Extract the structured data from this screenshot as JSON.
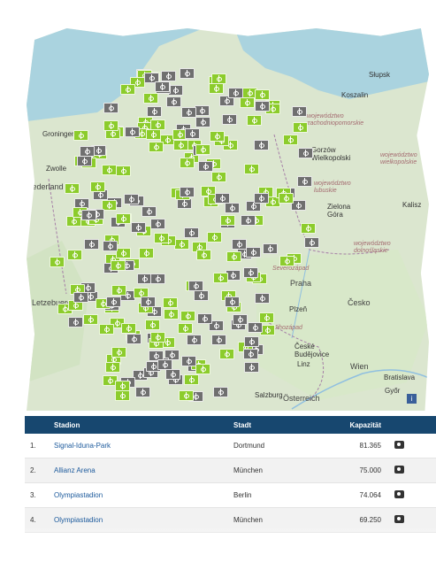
{
  "map": {
    "labels": [
      {
        "text": "Słupsk",
        "cls": "city"
      },
      {
        "text": "Koszalin",
        "cls": "city"
      },
      {
        "text": "Groningen",
        "cls": "city"
      },
      {
        "text": "Zwolle",
        "cls": "city"
      },
      {
        "text": "Gorzów Wielkopolski",
        "cls": "city"
      },
      {
        "text": "województwo zachodniopomorskie",
        "cls": "region"
      },
      {
        "text": "województwo lubuskie",
        "cls": "region"
      },
      {
        "text": "województwo wielkopolskie",
        "cls": "region"
      },
      {
        "text": "województwo dolnośląskie",
        "cls": "region"
      },
      {
        "text": "Zielona Góra",
        "cls": "city"
      },
      {
        "text": "Praha",
        "cls": "big"
      },
      {
        "text": "Česko",
        "cls": "big"
      },
      {
        "text": "Plzeň",
        "cls": "city"
      },
      {
        "text": "Severozápad",
        "cls": "region"
      },
      {
        "text": "Jihozápad",
        "cls": "region"
      },
      {
        "text": "České Budějovice",
        "cls": "city"
      },
      {
        "text": "Linz",
        "cls": "city"
      },
      {
        "text": "Wien",
        "cls": "big"
      },
      {
        "text": "Österreich",
        "cls": "big"
      },
      {
        "text": "Salzburg",
        "cls": "city"
      },
      {
        "text": "Bratislava",
        "cls": "city"
      },
      {
        "text": "Győr",
        "cls": "city"
      },
      {
        "text": "Nederland",
        "cls": "big"
      },
      {
        "text": "Letzebuerg",
        "cls": "big"
      },
      {
        "text": "Kalisz",
        "cls": "city"
      }
    ],
    "info_label": "i",
    "marker_colors": {
      "football_ground": "#8ccc2c",
      "other_ground": "#6f6f6f"
    }
  },
  "table": {
    "headers": {
      "rank": "",
      "name": "Stadion",
      "city": "Stadt",
      "capacity": "Kapazität"
    },
    "rows": [
      {
        "rank": "1.",
        "name": "Signal-Iduna-Park",
        "city": "Dortmund",
        "capacity": "81.365",
        "icon": "camera-icon"
      },
      {
        "rank": "2.",
        "name": "Allianz Arena",
        "city": "München",
        "capacity": "75.000",
        "icon": "camera-icon"
      },
      {
        "rank": "3.",
        "name": "Olympiastadion",
        "city": "Berlin",
        "capacity": "74.064",
        "icon": "camera-icon"
      },
      {
        "rank": "4.",
        "name": "Olympiastadion",
        "city": "München",
        "capacity": "69.250",
        "icon": "camera-icon"
      }
    ]
  }
}
